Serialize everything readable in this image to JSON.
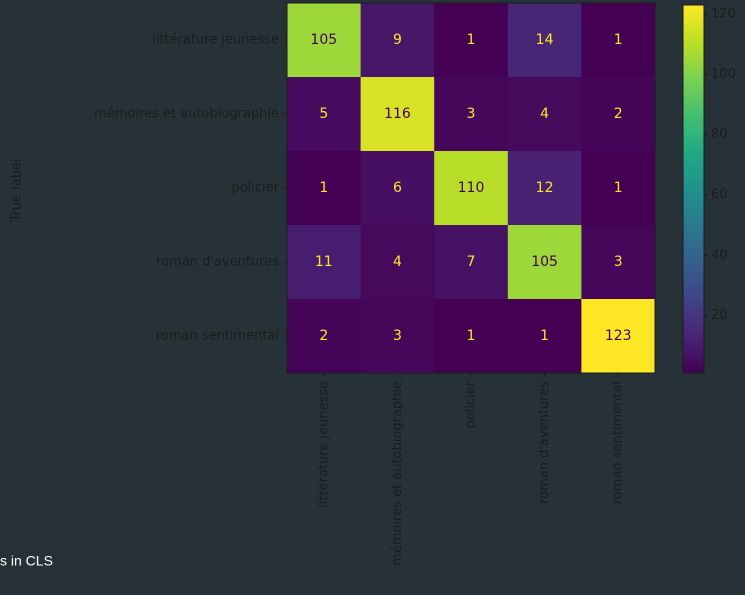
{
  "chart_data": {
    "type": "heatmap",
    "ylabel": "True label",
    "categories": [
      "littérature jeunesse",
      "mémoires et autobiographie",
      "policier",
      "roman d'aventures",
      "roman sentimental"
    ],
    "z": [
      [
        105,
        9,
        1,
        14,
        1
      ],
      [
        5,
        116,
        3,
        4,
        2
      ],
      [
        1,
        6,
        110,
        12,
        1
      ],
      [
        11,
        4,
        7,
        105,
        3
      ],
      [
        2,
        3,
        1,
        1,
        123
      ]
    ],
    "colormap": "viridis",
    "clim": [
      1,
      123
    ],
    "colorbar_ticks": [
      20,
      40,
      60,
      80,
      100,
      120
    ]
  },
  "caption": "s in CLS"
}
